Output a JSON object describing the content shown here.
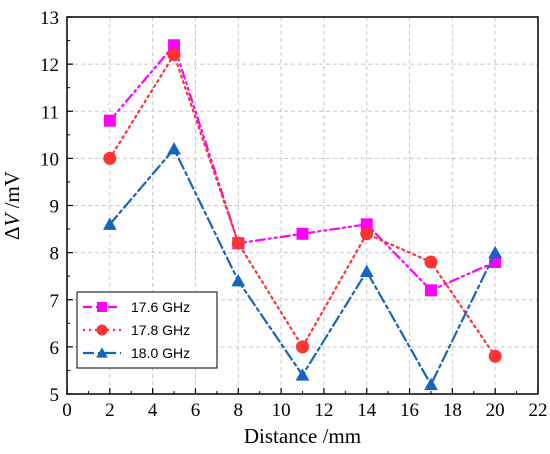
{
  "chart_data": {
    "type": "line",
    "x": [
      2,
      5,
      8,
      11,
      14,
      17,
      20
    ],
    "series": [
      {
        "name": "17.6 GHz",
        "values": [
          10.8,
          12.4,
          8.2,
          8.4,
          8.6,
          7.2,
          7.8
        ],
        "color": "#ff00ff",
        "marker": "square",
        "line_style": "dash-dot-dot"
      },
      {
        "name": "17.8 GHz",
        "values": [
          10.0,
          12.2,
          8.2,
          6.0,
          8.4,
          7.8,
          5.8
        ],
        "color": "#ff3333",
        "marker": "circle",
        "line_style": "dotted"
      },
      {
        "name": "18.0 GHz",
        "values": [
          8.6,
          10.2,
          7.4,
          5.4,
          7.6,
          5.2,
          8.0
        ],
        "color": "#1565c0",
        "marker": "triangle",
        "line_style": "dash-dot"
      }
    ],
    "xlabel": "Distance /mm",
    "ylabel_prefix": "Δ",
    "ylabel_var": "V",
    "ylabel_unit": " /mV",
    "xlim": [
      0,
      22
    ],
    "ylim": [
      5,
      13
    ],
    "xticks": [
      0,
      2,
      4,
      6,
      8,
      10,
      12,
      14,
      16,
      18,
      20,
      22
    ],
    "yticks": [
      5,
      6,
      7,
      8,
      9,
      10,
      11,
      12,
      13
    ],
    "grid": true,
    "legend_position": "bottom-left"
  }
}
